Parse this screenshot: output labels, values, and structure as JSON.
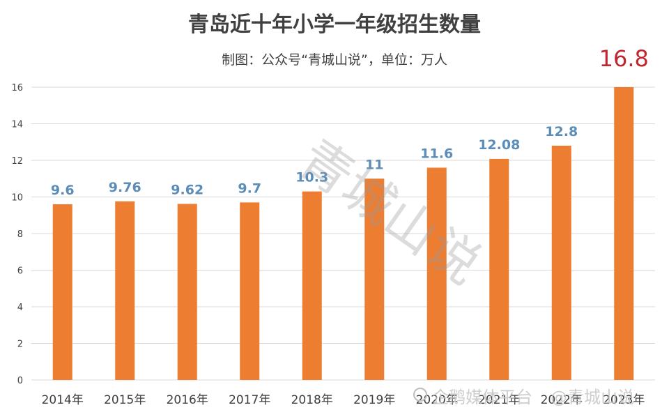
{
  "chart_data": {
    "type": "bar",
    "title": "青岛近十年小学一年级招生数量",
    "subtitle": "制图：公众号“青城山说”，单位：万人",
    "categories": [
      "2014年",
      "2015年",
      "2016年",
      "2017年",
      "2018年",
      "2019年",
      "2020年",
      "2021年",
      "2022年",
      "2023年"
    ],
    "values": [
      9.6,
      9.76,
      9.62,
      9.7,
      10.3,
      11,
      11.6,
      12.08,
      12.8,
      16.8
    ],
    "data_labels": [
      "9.6",
      "9.76",
      "9.62",
      "9.7",
      "10.3",
      "11",
      "11.6",
      "12.08",
      "12.8",
      "16.8"
    ],
    "highlight_index": 9,
    "ylim": [
      0,
      16
    ],
    "yticks": [
      0,
      2,
      4,
      6,
      8,
      10,
      12,
      14,
      16
    ],
    "grid": true,
    "xlabel": "",
    "ylabel": "",
    "colors": {
      "bar": "#ED7D31",
      "label": "#5B8DB8",
      "highlight_label": "#C0262D",
      "grid": "#D9D9D9",
      "text": "#404040"
    }
  },
  "watermark": {
    "center": "青城山说",
    "footer_platform": "企鹅媒体平台",
    "footer_account": "@青城山说"
  }
}
